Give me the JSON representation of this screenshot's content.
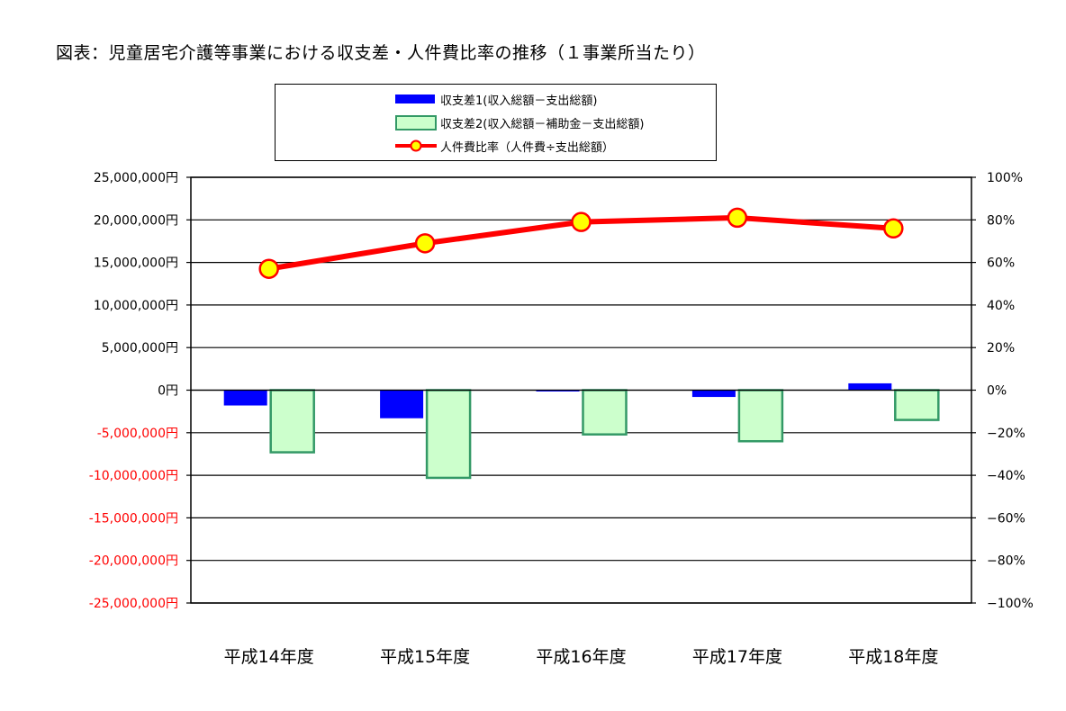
{
  "title": "図表：児童居宅介護等事業における収支差・人件費比率の推移（１事業所当たり）",
  "legend": {
    "series1": "収支差1(収入総額－支出総額)",
    "series2": "収支差2(収入総額－補助金－支出総額)",
    "series3": "人件費比率（人件費÷支出総額）"
  },
  "colors": {
    "series1": "#0000ff",
    "series2_fill": "#ccffcc",
    "series2_stroke": "#339966",
    "line": "#ff0000",
    "marker": "#ffff00",
    "negative_axis_label": "#ff0000"
  },
  "chart_data": {
    "type": "bar",
    "categories": [
      "平成14年度",
      "平成15年度",
      "平成16年度",
      "平成17年度",
      "平成18年度"
    ],
    "series": [
      {
        "name": "収支差1(収入総額－支出総額)",
        "type": "bar",
        "axis": "left",
        "values": [
          -1800000,
          -3300000,
          -150000,
          -800000,
          800000
        ]
      },
      {
        "name": "収支差2(収入総額－補助金－支出総額)",
        "type": "bar",
        "axis": "left",
        "values": [
          -7300000,
          -10300000,
          -5200000,
          -6000000,
          -3500000
        ]
      },
      {
        "name": "人件費比率（人件費÷支出総額）",
        "type": "line",
        "axis": "right",
        "values": [
          57,
          69,
          79,
          81,
          76
        ]
      }
    ],
    "ylim": [
      -25000000,
      25000000
    ],
    "y2lim": [
      -100,
      100
    ],
    "yticks": [
      {
        "value": 25000000,
        "label": "25,000,000円"
      },
      {
        "value": 20000000,
        "label": "20,000,000円"
      },
      {
        "value": 15000000,
        "label": "15,000,000円"
      },
      {
        "value": 10000000,
        "label": "10,000,000円"
      },
      {
        "value": 5000000,
        "label": "5,000,000円"
      },
      {
        "value": 0,
        "label": "0円"
      },
      {
        "value": -5000000,
        "label": "-5,000,000円"
      },
      {
        "value": -10000000,
        "label": "-10,000,000円"
      },
      {
        "value": -15000000,
        "label": "-15,000,000円"
      },
      {
        "value": -20000000,
        "label": "-20,000,000円"
      },
      {
        "value": -25000000,
        "label": "-25,000,000円"
      }
    ],
    "y2ticks": [
      {
        "value": 100,
        "label": "100%"
      },
      {
        "value": 80,
        "label": "80%"
      },
      {
        "value": 60,
        "label": "60%"
      },
      {
        "value": 40,
        "label": "40%"
      },
      {
        "value": 20,
        "label": "20%"
      },
      {
        "value": 0,
        "label": "0%"
      },
      {
        "value": -20,
        "label": "−20%"
      },
      {
        "value": -40,
        "label": "−40%"
      },
      {
        "value": -60,
        "label": "−60%"
      },
      {
        "value": -80,
        "label": "−80%"
      },
      {
        "value": -100,
        "label": "−100%"
      }
    ],
    "grid": true,
    "legend_position": "top"
  }
}
